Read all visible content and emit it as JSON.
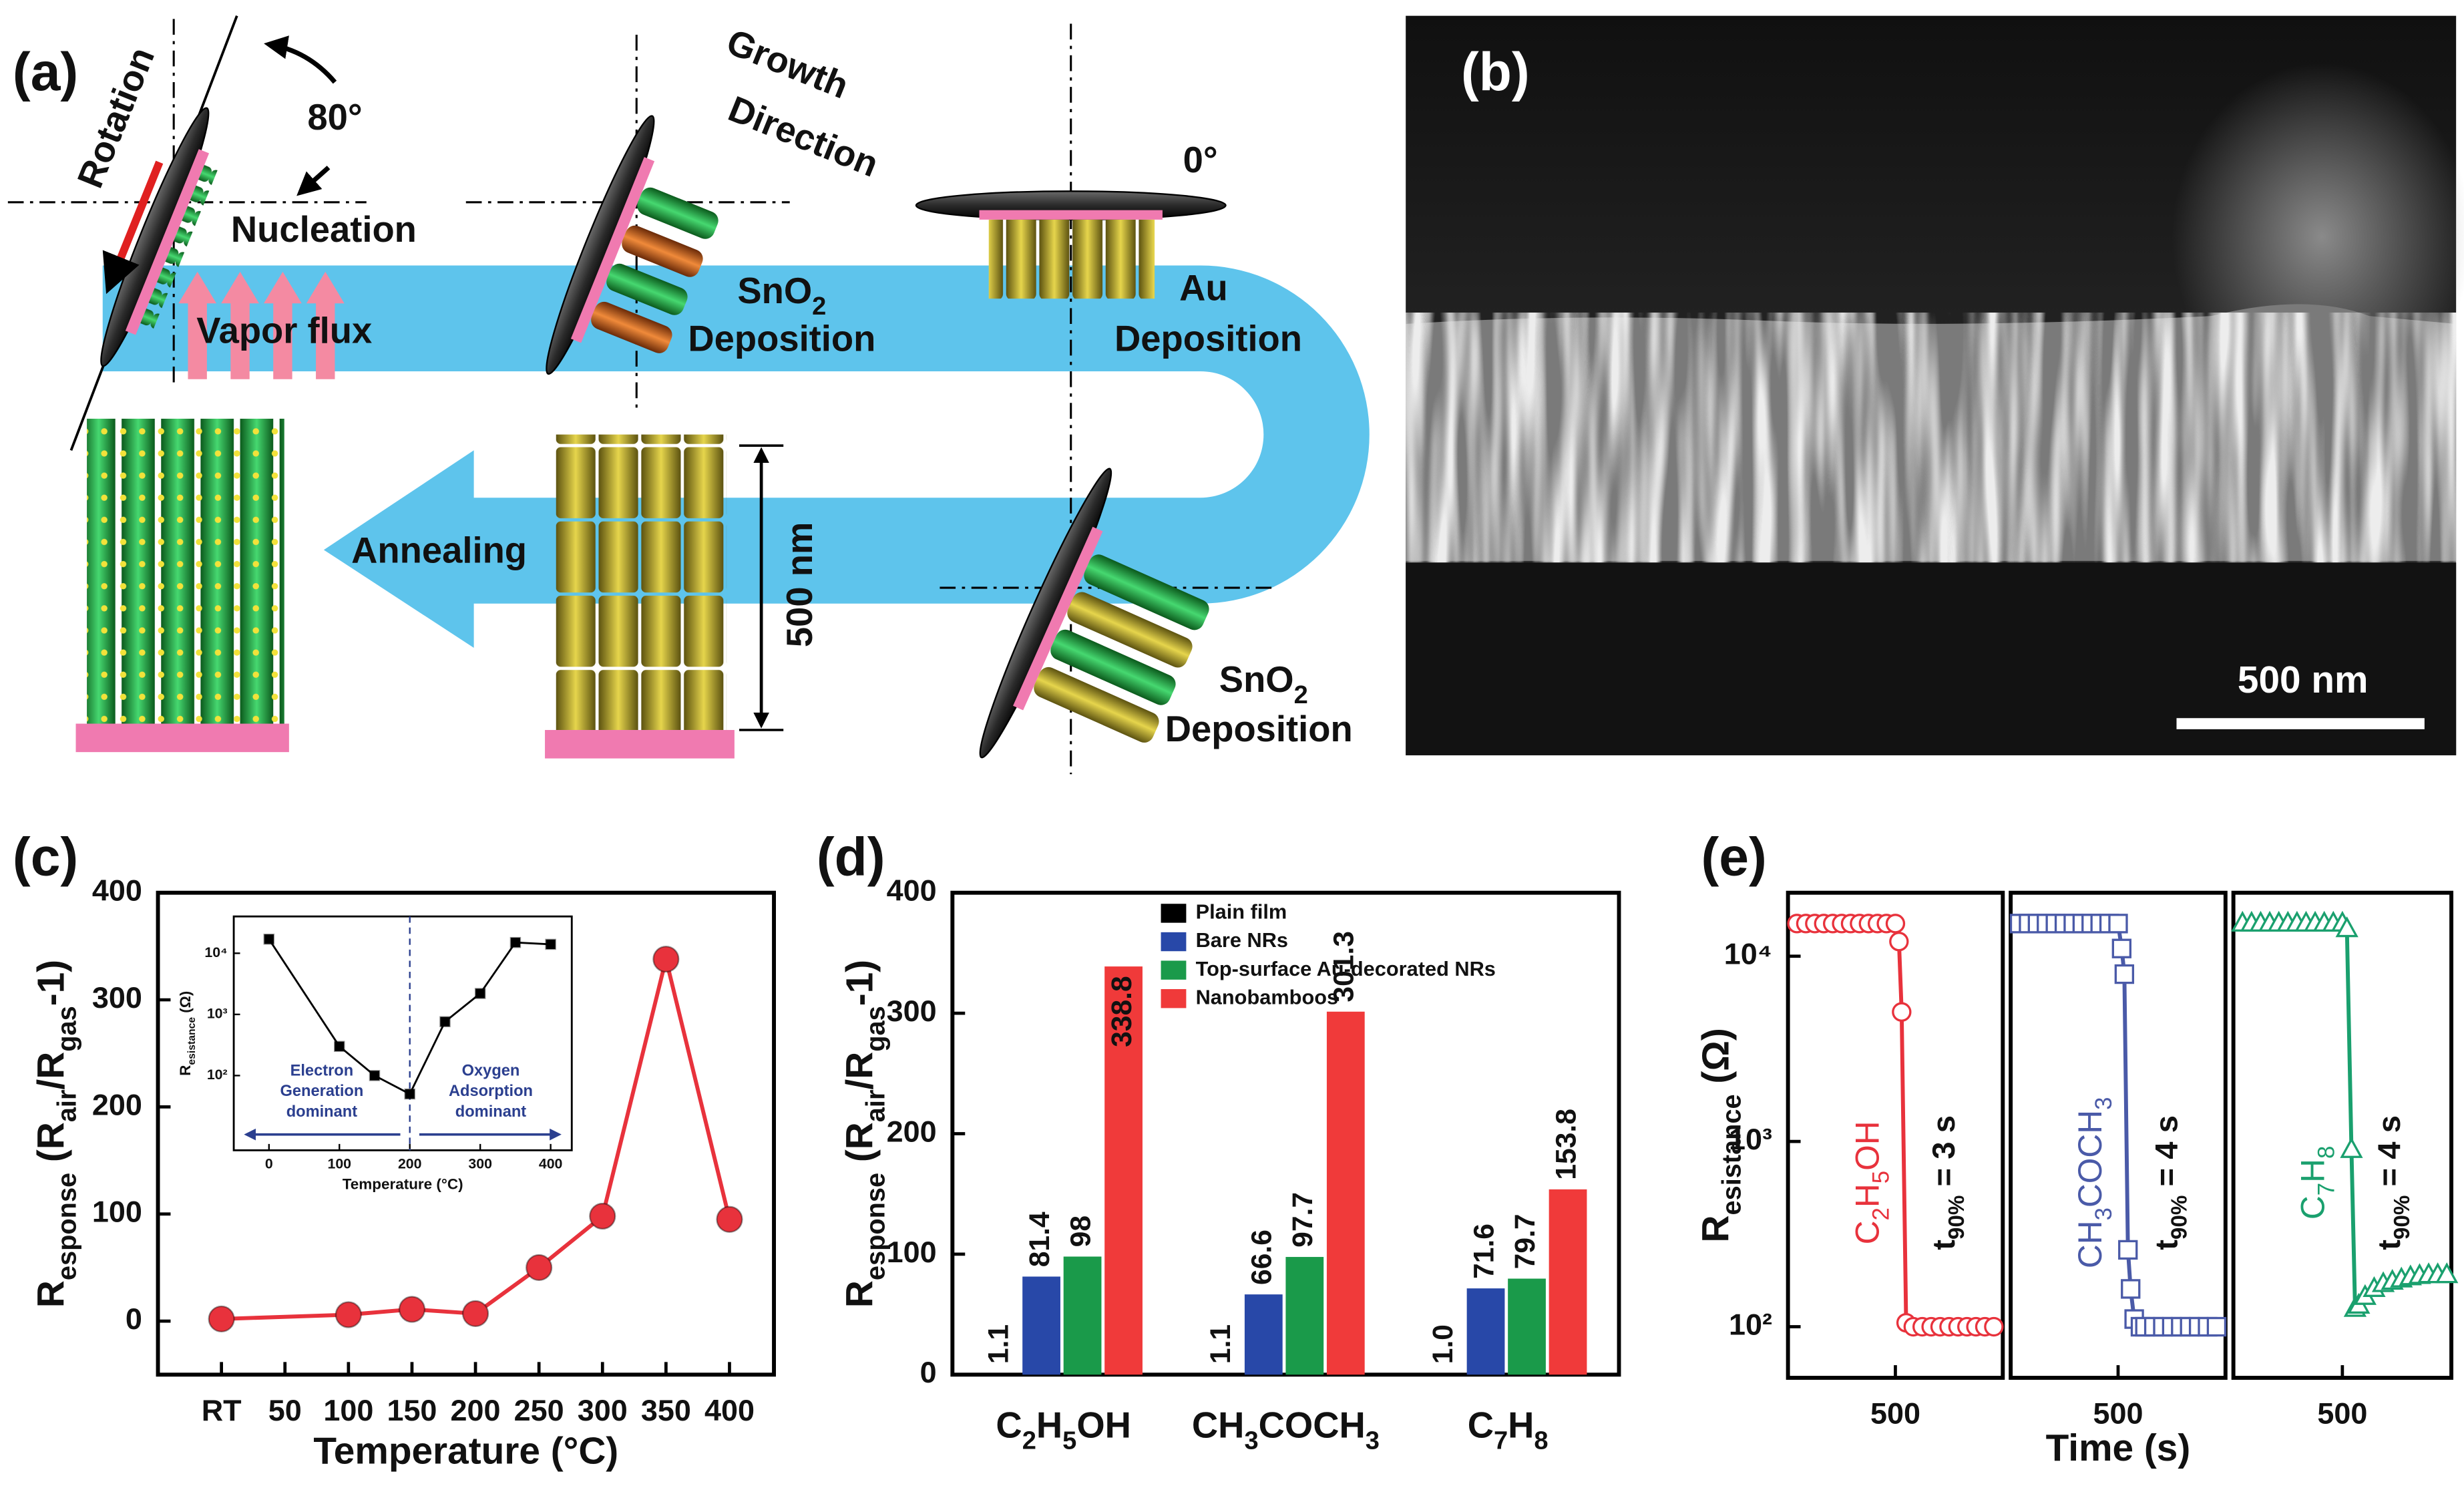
{
  "panel_labels": [
    "(a)",
    "(b)",
    "(c)",
    "(d)",
    "(e)"
  ],
  "diagram": {
    "rotation": "Rotation",
    "angle_80": "80°",
    "nucleation": "Nucleation",
    "vapor_flux": "Vapor flux",
    "growth_direction": [
      "Growth",
      "Direction"
    ],
    "sno2_deposition_1": [
      "SnO2",
      "Deposition"
    ],
    "angle_0": "0°",
    "au_deposition": [
      "Au",
      "Deposition"
    ],
    "annealing": "Annealing",
    "height": "500 nm",
    "sno2_deposition_2": [
      "SnO2",
      "Deposition"
    ]
  },
  "sem": {
    "scale_bar": "500 nm"
  },
  "chart_data": [
    {
      "type": "line",
      "xlabel": "Temperature (°C)",
      "ylabel": "Response (Rair/Rgas-1)",
      "x": [
        0,
        100,
        150,
        200,
        250,
        300,
        350,
        400
      ],
      "values": [
        2,
        6,
        11,
        7,
        50,
        98,
        338,
        95
      ],
      "color": "#e8323c",
      "marker": "circle",
      "xlim": [
        -50,
        435
      ],
      "ylim": [
        -50,
        400
      ],
      "xticks": [
        {
          "value": 0,
          "label": "RT"
        },
        50,
        100,
        150,
        200,
        250,
        300,
        350,
        400
      ],
      "yticks": [
        0,
        100,
        200,
        300,
        400
      ]
    },
    {
      "type": "line",
      "xlabel": "Temperature (°C)",
      "ylabel": "Resistance (Ω)",
      "x": [
        0,
        100,
        150,
        200,
        250,
        300,
        350,
        400
      ],
      "values": [
        17000,
        300,
        100,
        50,
        760,
        2200,
        15000,
        14000
      ],
      "color": "#000000",
      "marker": "square",
      "log_y": true,
      "xlim": [
        -50,
        430
      ],
      "ylim": [
        6,
        40000
      ],
      "xticks": [
        0,
        100,
        200,
        300,
        400
      ],
      "yticks": [
        {
          "value": 100,
          "label": "10²"
        },
        {
          "value": 1000,
          "label": "10³"
        },
        {
          "value": 10000,
          "label": "10⁴"
        }
      ],
      "vline": 200,
      "annotations": [
        [
          "Electron",
          "Generation",
          "dominant"
        ],
        [
          "Oxygen",
          "Adsorption",
          "dominant"
        ]
      ]
    },
    {
      "type": "bar",
      "ylabel": "Response (Rair/Rgas-1)",
      "categories": [
        "C2H5OH",
        "CH3COCH3",
        "C7H8"
      ],
      "series": [
        {
          "name": "Plain film",
          "color": "#000000",
          "values": [
            1.1,
            1.1,
            1.0
          ],
          "value_labels": [
            "1.1",
            "1.1",
            "1.0"
          ]
        },
        {
          "name": "Bare NRs",
          "color": "#2848a8",
          "values": [
            81.4,
            66.6,
            71.6
          ]
        },
        {
          "name": "Top-surface Au-decorated NRs",
          "color": "#1a9a4a",
          "values": [
            98,
            97.7,
            79.7
          ]
        },
        {
          "name": "Nanobamboos",
          "color": "#f03a3a",
          "values": [
            338.8,
            301.3,
            153.8
          ]
        }
      ],
      "ylim": [
        0,
        400
      ],
      "yticks": [
        0,
        100,
        200,
        300,
        400
      ],
      "legend": "upper right"
    },
    {
      "type": "line",
      "ylabel": "Resistance (Ω)",
      "formula": "C2H5OH",
      "annotation": "t90% = 3 s",
      "x": [
        390,
        400,
        410,
        420,
        430,
        440,
        450,
        460,
        470,
        480,
        490,
        500,
        504,
        507,
        512,
        520,
        530,
        540,
        550,
        560,
        570,
        580,
        590,
        600,
        610
      ],
      "values": [
        15000,
        15000,
        15000,
        15000,
        15000,
        15000,
        15000,
        15000,
        15000,
        15000,
        15000,
        15000,
        12000,
        5000,
        105,
        100,
        100,
        100,
        100,
        100,
        100,
        100,
        100,
        100,
        100
      ],
      "color": "#e8323c",
      "marker": "circle",
      "log_y": true,
      "xlim": [
        380,
        620
      ],
      "ylim": [
        53,
        22000
      ],
      "xticks": [
        500
      ],
      "yticks": [
        {
          "value": 100,
          "label": "10²"
        },
        {
          "value": 1000,
          "label": "10³"
        },
        {
          "value": 10000,
          "label": "10⁴"
        }
      ]
    },
    {
      "type": "line",
      "xlabel": "Time (s)",
      "formula": "CH3COCH3",
      "annotation": "t90% = 4 s",
      "x": [
        390,
        400,
        410,
        420,
        430,
        440,
        450,
        460,
        470,
        480,
        490,
        500,
        504,
        507,
        511,
        514,
        518,
        525,
        530,
        540,
        550,
        560,
        570,
        580,
        590,
        600,
        610
      ],
      "values": [
        15000,
        15000,
        15000,
        15000,
        15000,
        15000,
        15000,
        15000,
        15000,
        15000,
        15000,
        15000,
        11000,
        8000,
        260,
        160,
        110,
        100,
        100,
        100,
        100,
        100,
        100,
        100,
        100,
        100,
        100
      ],
      "color": "#4a5aa8",
      "marker": "square",
      "log_y": true,
      "xlim": [
        380,
        620
      ],
      "ylim": [
        53,
        22000
      ],
      "xticks": [
        500
      ]
    },
    {
      "type": "line",
      "formula": "C7H8",
      "annotation": "t90% = 4 s",
      "x": [
        390,
        400,
        410,
        420,
        430,
        440,
        450,
        460,
        470,
        480,
        490,
        500,
        505,
        510,
        514,
        518,
        525,
        535,
        545,
        555,
        565,
        575,
        585,
        595,
        605,
        615
      ],
      "values": [
        15000,
        15000,
        15000,
        15000,
        15000,
        15000,
        15000,
        15000,
        15000,
        15000,
        15000,
        15000,
        14000,
        900,
        125,
        130,
        145,
        160,
        170,
        175,
        180,
        185,
        188,
        190,
        190,
        190
      ],
      "color": "#1aa06e",
      "marker": "triangle",
      "log_y": true,
      "xlim": [
        380,
        620
      ],
      "ylim": [
        53,
        22000
      ],
      "xticks": [
        500
      ]
    }
  ]
}
